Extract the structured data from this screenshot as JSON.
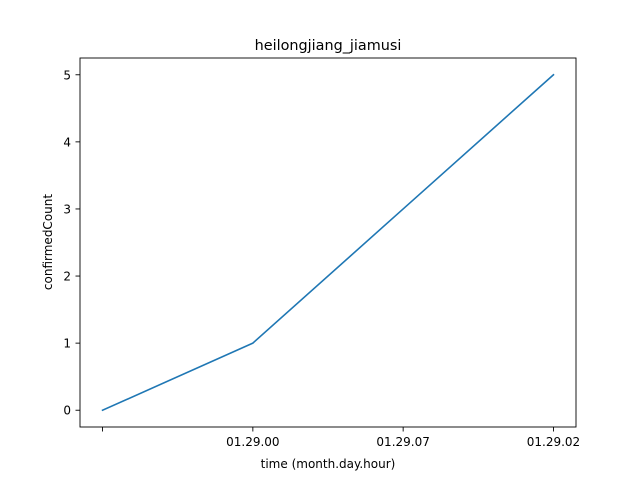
{
  "chart_data": {
    "type": "line",
    "title": "heilongjiang_jiamusi",
    "xlabel": "time (month.day.hour)",
    "ylabel": "confirmedCount",
    "categories": [
      "",
      "01.29.00",
      "01.29.07",
      "01.29.02"
    ],
    "series": [
      {
        "values": [
          0,
          1,
          3,
          5
        ],
        "color": "#1f77b4"
      }
    ],
    "yticks": [
      0,
      1,
      2,
      3,
      4,
      5
    ],
    "ylim": [
      -0.25,
      5.25
    ],
    "grid": false,
    "legend": "none"
  }
}
